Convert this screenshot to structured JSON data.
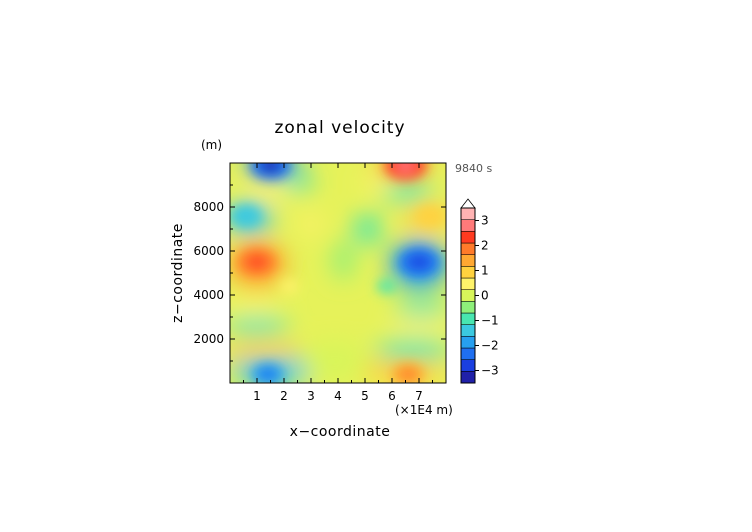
{
  "chart_data": {
    "type": "heatmap",
    "title": "zonal velocity",
    "xlabel": "x−coordinate",
    "ylabel": "z−coordinate",
    "x_unit": "(×1E4 m)",
    "y_unit": "(m)",
    "time_label": "9840 s",
    "xlim": [
      0,
      8
    ],
    "ylim": [
      0,
      10000
    ],
    "x_ticks": [
      1,
      2,
      3,
      4,
      5,
      6,
      7
    ],
    "y_ticks": [
      2000,
      4000,
      6000,
      8000
    ],
    "colorbar": {
      "min": -3.5,
      "max": 3.5,
      "step": 0.5,
      "ticks": [
        3,
        2,
        1,
        0,
        -1,
        -2,
        -3
      ],
      "tick_labels": [
        "3",
        "2",
        "1",
        "0",
        "−1",
        "−2",
        "−3"
      ],
      "colors": [
        "#2020a8",
        "#1a3fe0",
        "#1f6ff0",
        "#27a0f0",
        "#3bc9e0",
        "#48e6b0",
        "#8ef07a",
        "#d8f55a",
        "#fff36a",
        "#ffd23f",
        "#ffa832",
        "#ff7a2a",
        "#ff3a20",
        "#ff7a7a",
        "#ffb3b3"
      ],
      "colors_note_levels": "ascending from -3.5 to 3.5",
      "extends": "max"
    },
    "features": [
      {
        "x": 1.0,
        "z": 5500,
        "value": 2.2
      },
      {
        "x": 7.0,
        "z": 5500,
        "value": -2.3
      },
      {
        "x": 1.5,
        "z": 9900,
        "value": -2.5
      },
      {
        "x": 6.5,
        "z": 9900,
        "value": 2.5
      },
      {
        "x": 0.6,
        "z": 7600,
        "value": -1.5
      },
      {
        "x": 7.4,
        "z": 7600,
        "value": 1.4
      },
      {
        "x": 1.4,
        "z": 400,
        "value": -1.8
      },
      {
        "x": 6.6,
        "z": 400,
        "value": 1.8
      },
      {
        "x": 2.2,
        "z": 4400,
        "value": 0.6
      },
      {
        "x": 5.8,
        "z": 4400,
        "value": -0.6
      }
    ]
  }
}
